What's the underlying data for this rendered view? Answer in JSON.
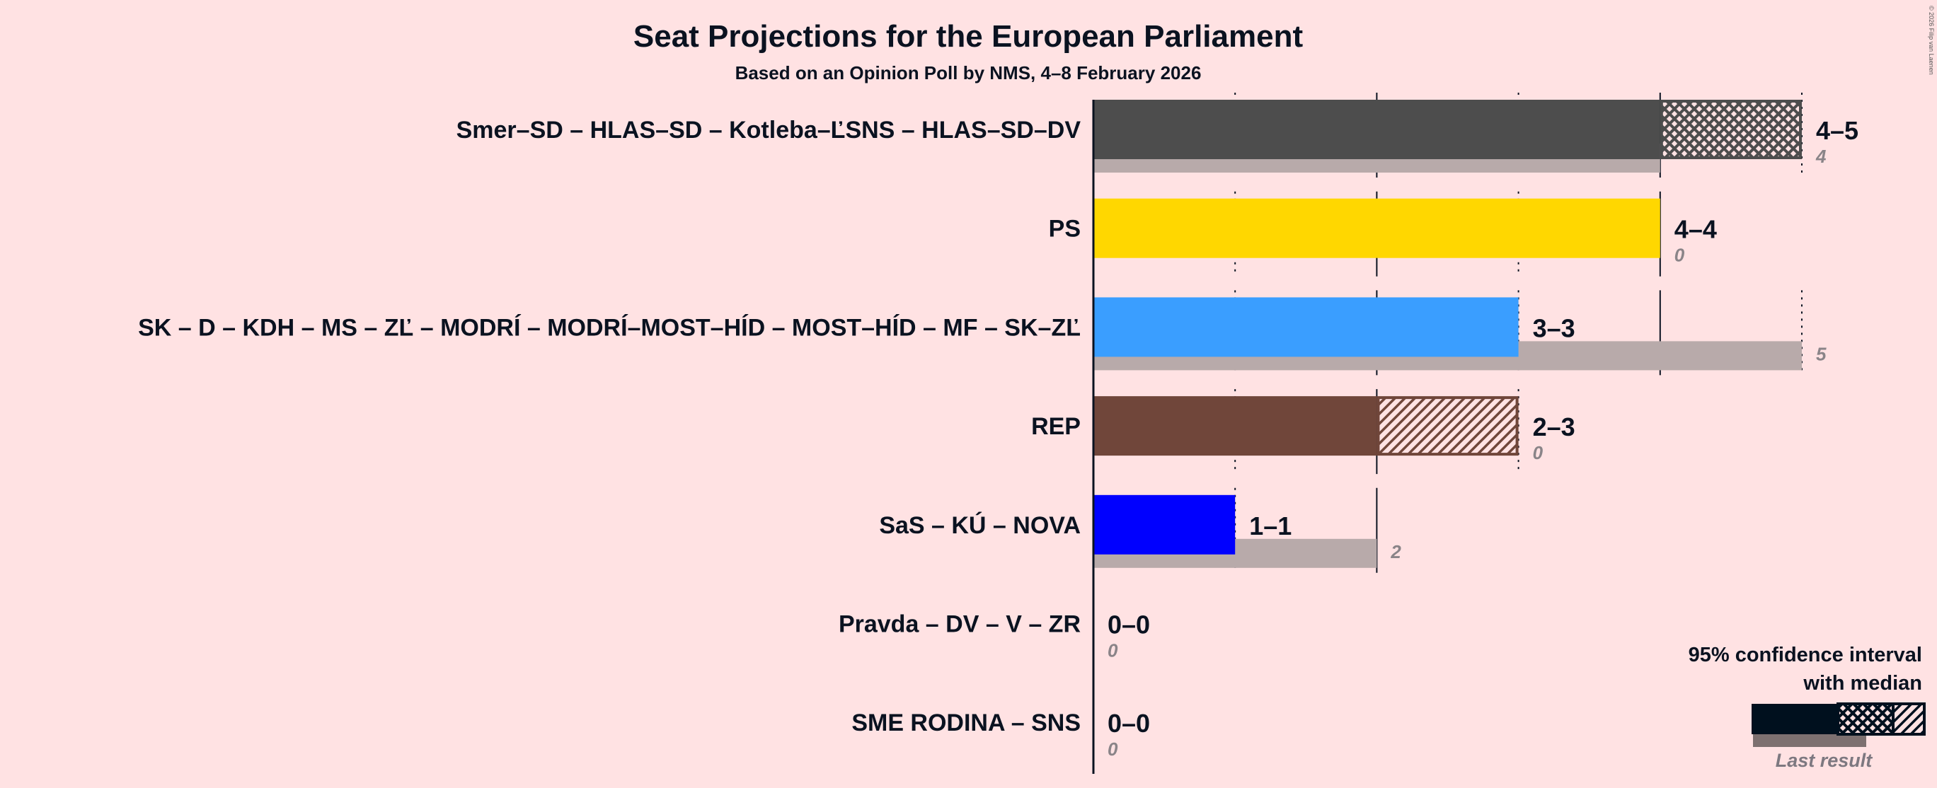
{
  "chart_data": {
    "type": "bar",
    "title": "Seat Projections for the European Parliament",
    "subtitle": "Based on an Opinion Poll by NMS, 4–8 February 2026",
    "copyright": "© 2026 Filip van Laenen",
    "xlim": [
      0,
      5
    ],
    "parties": [
      {
        "name": "Smer–SD – HLAS–SD – Kotleba–ĽSNS – HLAS–SD–DV",
        "low": 4,
        "median": 5,
        "high": 5,
        "range_label": "4–5",
        "last": 4,
        "last_label": "4",
        "color": "#4D4D4D"
      },
      {
        "name": "PS",
        "low": 4,
        "median": 4,
        "high": 4,
        "range_label": "4–4",
        "last": 0,
        "last_label": "0",
        "color": "#FFD700"
      },
      {
        "name": "SK – D – KDH – MS – ZĽ – MODRÍ – MODRÍ–MOST–HÍD – MOST–HÍD – MF – SK–ZĽ",
        "low": 3,
        "median": 3,
        "high": 3,
        "range_label": "3–3",
        "last": 5,
        "last_label": "5",
        "color": "#3A9EFF"
      },
      {
        "name": "REP",
        "low": 2,
        "median": 2,
        "high": 3,
        "range_label": "2–3",
        "last": 0,
        "last_label": "0",
        "color": "#70463A"
      },
      {
        "name": "SaS – KÚ – NOVA",
        "low": 1,
        "median": 1,
        "high": 1,
        "range_label": "1–1",
        "last": 2,
        "last_label": "2",
        "color": "#0000FF"
      },
      {
        "name": "Pravda – DV – V – ZR",
        "low": 0,
        "median": 0,
        "high": 0,
        "range_label": "0–0",
        "last": 0,
        "last_label": "0",
        "color": "#888888"
      },
      {
        "name": "SME RODINA – SNS",
        "low": 0,
        "median": 0,
        "high": 0,
        "range_label": "0–0",
        "last": 0,
        "last_label": "0",
        "color": "#888888"
      }
    ],
    "legend": {
      "line1": "95% confidence interval",
      "line2": "with median",
      "last_result": "Last result",
      "placement": "bottom-right"
    },
    "colors": {
      "background": "#FFE2E3",
      "last_result": "#B8AAAA",
      "text": "#0A1220",
      "legend_bar": "#00101E"
    }
  }
}
